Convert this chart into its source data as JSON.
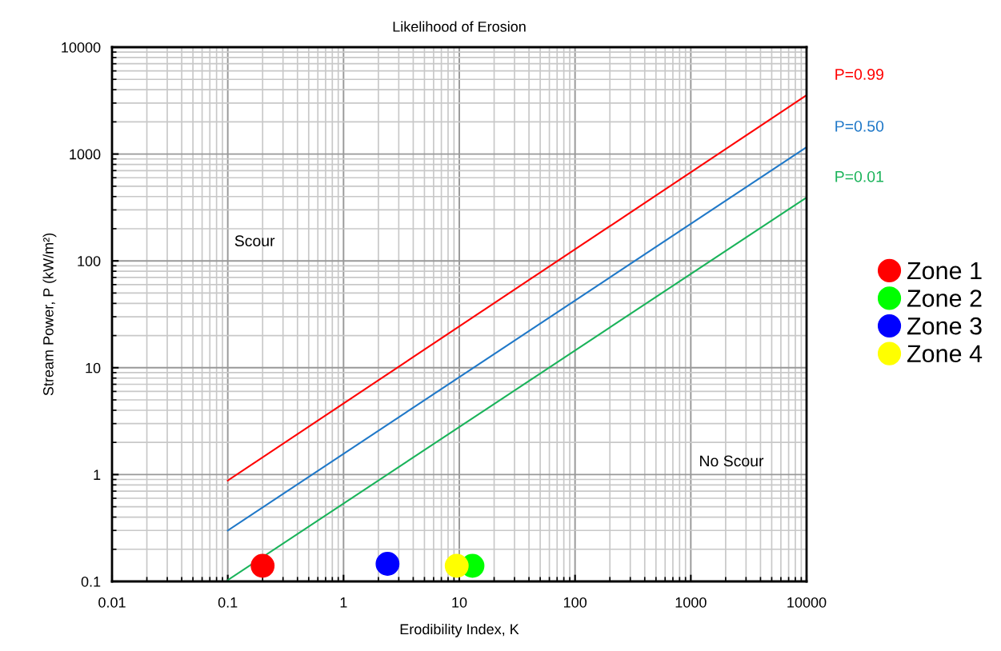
{
  "chart_data": {
    "type": "scatter",
    "title": "Likelihood of Erosion",
    "xlabel": "Erodibility Index, K",
    "ylabel": "Stream Power, P (kW/m²)",
    "log": "xy",
    "xlim": [
      0.01,
      10000
    ],
    "ylim": [
      0.1,
      10000
    ],
    "xticks": [
      0.01,
      0.1,
      1,
      10,
      100,
      1000,
      10000
    ],
    "yticks": [
      0.1,
      1,
      10,
      100,
      1000,
      10000
    ],
    "grid": true,
    "legend": "right",
    "marker": "circle",
    "series": [
      {
        "name": "P=0.99",
        "type": "line",
        "marker": "none",
        "color": "#ff0000",
        "x": [
          0.1,
          10000
        ],
        "values": [
          0.88,
          3550
        ]
      },
      {
        "name": "P=0.50",
        "type": "line",
        "marker": "none",
        "color": "#1f78c8",
        "x": [
          0.1,
          10000
        ],
        "values": [
          0.3,
          1160
        ]
      },
      {
        "name": "P=0.01",
        "type": "line",
        "marker": "none",
        "color": "#1ab35a",
        "x": [
          0.1,
          10000
        ],
        "values": [
          0.103,
          392
        ]
      },
      {
        "name": "Zone 1",
        "color": "#ff0000",
        "x": [
          0.2
        ],
        "values": [
          0.14
        ]
      },
      {
        "name": "Zone 2",
        "color": "#00ff00",
        "x": [
          13
        ],
        "values": [
          0.14
        ]
      },
      {
        "name": "Zone 3",
        "color": "#0000ff",
        "x": [
          2.4
        ],
        "values": [
          0.146
        ]
      },
      {
        "name": "Zone 4",
        "color": "#ffff00",
        "x": [
          9.5
        ],
        "values": [
          0.14
        ]
      }
    ],
    "annotations": [
      "Scour",
      "No Scour"
    ]
  }
}
